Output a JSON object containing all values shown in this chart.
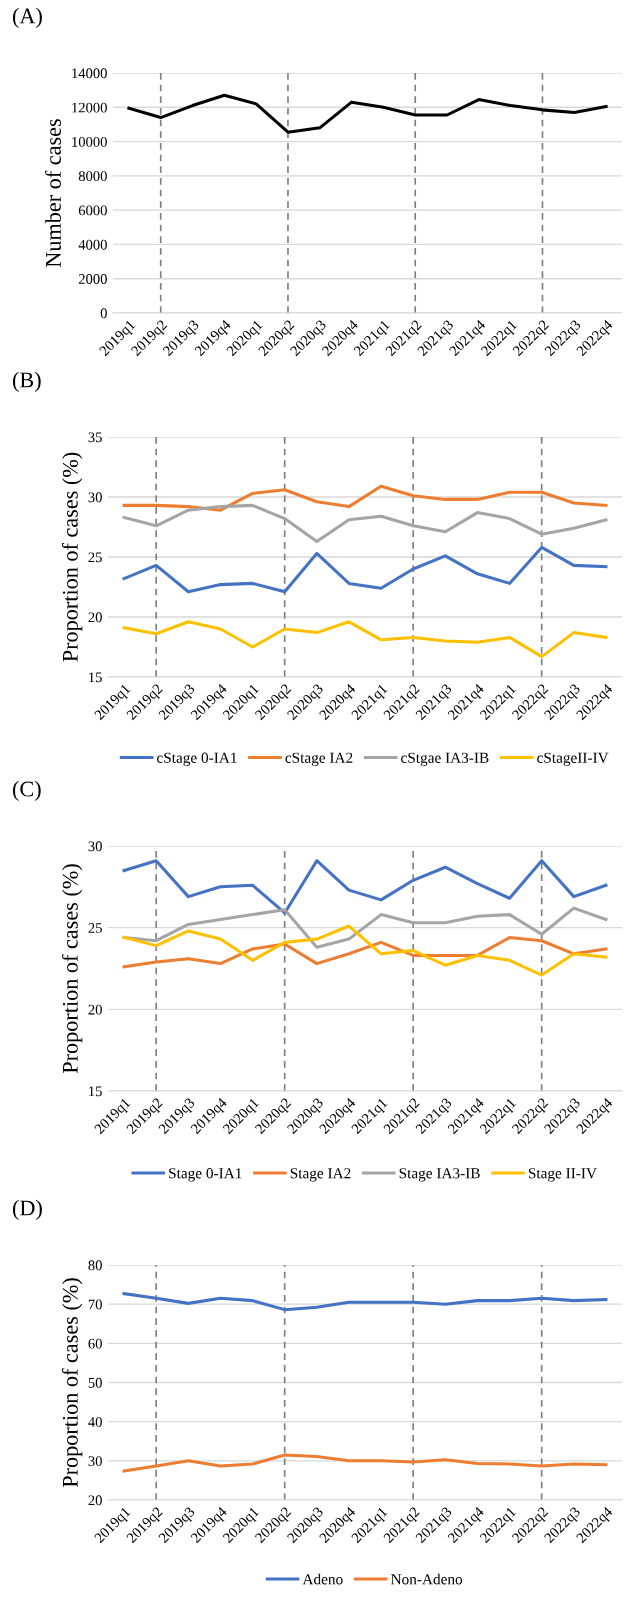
{
  "chart_data": [
    {
      "type": "line",
      "title": "(A)",
      "ylabel": "Number of cases",
      "categories": [
        "2019q1",
        "2019q2",
        "2019q3",
        "2019q4",
        "2020q1",
        "2020q2",
        "2020q3",
        "2020q4",
        "2021q1",
        "2021q2",
        "2021q3",
        "2021q4",
        "2022q1",
        "2022q2",
        "2022q3",
        "2022q4"
      ],
      "ylim": [
        0,
        14000
      ],
      "yticks": [
        0,
        2000,
        4000,
        6000,
        8000,
        10000,
        12000,
        14000
      ],
      "grid": "y",
      "legend": false,
      "series": [
        {
          "color": "#000000",
          "values": [
            11950,
            11400,
            12100,
            12700,
            12200,
            10550,
            10800,
            12300,
            12000,
            11550,
            11550,
            12450,
            12100,
            11850,
            11700,
            12050
          ]
        }
      ],
      "ref_lines": [
        {
          "axis": "x",
          "value": "2019q2",
          "color": "#808080",
          "line_style": "dashed"
        },
        {
          "axis": "x",
          "value": "2020q2",
          "color": "#808080",
          "line_style": "dashed"
        },
        {
          "axis": "x",
          "value": "2021q2",
          "color": "#808080",
          "line_style": "dashed"
        },
        {
          "axis": "x",
          "value": "2022q2",
          "color": "#808080",
          "line_style": "dashed"
        }
      ]
    },
    {
      "type": "line",
      "title": "(B)",
      "ylabel": "Proportion of cases (%)",
      "categories": [
        "2019q1",
        "2019q2",
        "2019q3",
        "2019q4",
        "2020q1",
        "2020q2",
        "2020q3",
        "2020q4",
        "2021q1",
        "2021q2",
        "2021q3",
        "2021q4",
        "2022q1",
        "2022q2",
        "2022q3",
        "2022q4"
      ],
      "ylim": [
        15,
        35
      ],
      "yticks": [
        15,
        20,
        25,
        30,
        35
      ],
      "grid": "y",
      "legend": "bottom",
      "series": [
        {
          "name": "cStage 0-IA1",
          "color": "#4472c4",
          "values": [
            23.2,
            24.3,
            22.1,
            22.7,
            22.8,
            22.1,
            25.3,
            22.8,
            22.4,
            24.0,
            25.1,
            23.6,
            22.8,
            25.8,
            24.3,
            24.2
          ]
        },
        {
          "name": "cStage IA2",
          "color": "#ed7d31",
          "values": [
            29.3,
            29.3,
            29.2,
            28.9,
            30.3,
            30.6,
            29.6,
            29.2,
            30.9,
            30.1,
            29.8,
            29.8,
            30.4,
            30.4,
            29.5,
            29.3
          ]
        },
        {
          "name": "cStgae IA3-IB",
          "color": "#a5a5a5",
          "values": [
            28.3,
            27.6,
            28.9,
            29.2,
            29.3,
            28.2,
            26.3,
            28.1,
            28.4,
            27.6,
            27.1,
            28.7,
            28.2,
            26.9,
            27.4,
            28.1
          ]
        },
        {
          "name": "cStageII-IV",
          "color": "#ffc000",
          "values": [
            19.1,
            18.6,
            19.6,
            19.0,
            17.5,
            19.0,
            18.7,
            19.6,
            18.1,
            18.3,
            18.0,
            17.9,
            18.3,
            16.7,
            18.7,
            18.3
          ]
        }
      ],
      "ref_lines": [
        {
          "axis": "x",
          "value": "2019q2",
          "color": "#808080",
          "line_style": "dashed"
        },
        {
          "axis": "x",
          "value": "2020q2",
          "color": "#808080",
          "line_style": "dashed"
        },
        {
          "axis": "x",
          "value": "2021q2",
          "color": "#808080",
          "line_style": "dashed"
        },
        {
          "axis": "x",
          "value": "2022q2",
          "color": "#808080",
          "line_style": "dashed"
        }
      ]
    },
    {
      "type": "line",
      "title": "(C)",
      "ylabel": "Proportion of cases (%)",
      "categories": [
        "2019q1",
        "2019q2",
        "2019q3",
        "2019q4",
        "2020q1",
        "2020q2",
        "2020q3",
        "2020q4",
        "2021q1",
        "2021q2",
        "2021q3",
        "2021q4",
        "2022q1",
        "2022q2",
        "2022q3",
        "2022q4"
      ],
      "ylim": [
        15,
        30
      ],
      "yticks": [
        15,
        20,
        25,
        30
      ],
      "grid": "y",
      "legend": "bottom",
      "series": [
        {
          "name": "Stage 0-IA1",
          "color": "#4472c4",
          "values": [
            28.5,
            29.1,
            26.9,
            27.5,
            27.6,
            25.9,
            29.1,
            27.3,
            26.7,
            27.9,
            28.7,
            27.7,
            26.8,
            29.1,
            26.9,
            27.6
          ]
        },
        {
          "name": "Stage IA2",
          "color": "#ed7d31",
          "values": [
            22.6,
            22.9,
            23.1,
            22.8,
            23.7,
            24.0,
            22.8,
            23.4,
            24.1,
            23.3,
            23.3,
            23.3,
            24.4,
            24.2,
            23.4,
            23.7
          ]
        },
        {
          "name": "Stage IA3-IB",
          "color": "#a5a5a5",
          "values": [
            24.4,
            24.2,
            25.2,
            25.5,
            25.8,
            26.1,
            23.8,
            24.3,
            25.8,
            25.3,
            25.3,
            25.7,
            25.8,
            24.6,
            26.2,
            25.5
          ]
        },
        {
          "name": "Stage II-IV",
          "color": "#ffc000",
          "values": [
            24.4,
            23.9,
            24.8,
            24.3,
            23.0,
            24.1,
            24.3,
            25.1,
            23.4,
            23.6,
            22.7,
            23.3,
            23.0,
            22.1,
            23.4,
            23.2
          ]
        }
      ],
      "ref_lines": [
        {
          "axis": "x",
          "value": "2019q2",
          "color": "#808080",
          "line_style": "dashed"
        },
        {
          "axis": "x",
          "value": "2020q2",
          "color": "#808080",
          "line_style": "dashed"
        },
        {
          "axis": "x",
          "value": "2021q2",
          "color": "#808080",
          "line_style": "dashed"
        },
        {
          "axis": "x",
          "value": "2022q2",
          "color": "#808080",
          "line_style": "dashed"
        }
      ]
    },
    {
      "type": "line",
      "title": "(D)",
      "ylabel": "Proportion of cases (%)",
      "categories": [
        "2019q1",
        "2019q2",
        "2019q3",
        "2019q4",
        "2020q1",
        "2020q2",
        "2020q3",
        "2020q4",
        "2021q1",
        "2021q2",
        "2021q3",
        "2021q4",
        "2022q1",
        "2022q2",
        "2022q3",
        "2022q4"
      ],
      "ylim": [
        20,
        80
      ],
      "yticks": [
        20,
        30,
        40,
        50,
        60,
        70,
        80
      ],
      "grid": "y",
      "legend": "bottom",
      "series": [
        {
          "name": "Adeno",
          "color": "#4472c4",
          "values": [
            72.7,
            71.5,
            70.2,
            71.5,
            70.9,
            68.6,
            69.2,
            70.5,
            70.5,
            70.5,
            70.0,
            70.9,
            70.9,
            71.5,
            70.9,
            71.2
          ]
        },
        {
          "name": "Non-Adeno",
          "color": "#ed7d31",
          "values": [
            27.4,
            28.7,
            30.0,
            28.7,
            29.2,
            31.5,
            31.1,
            30.0,
            30.0,
            29.7,
            30.3,
            29.3,
            29.2,
            28.7,
            29.2,
            29.0
          ]
        }
      ],
      "ref_lines": [
        {
          "axis": "x",
          "value": "2019q2",
          "color": "#808080",
          "line_style": "dashed"
        },
        {
          "axis": "x",
          "value": "2020q2",
          "color": "#808080",
          "line_style": "dashed"
        },
        {
          "axis": "x",
          "value": "2021q2",
          "color": "#808080",
          "line_style": "dashed"
        },
        {
          "axis": "x",
          "value": "2022q2",
          "color": "#808080",
          "line_style": "dashed"
        }
      ]
    }
  ]
}
